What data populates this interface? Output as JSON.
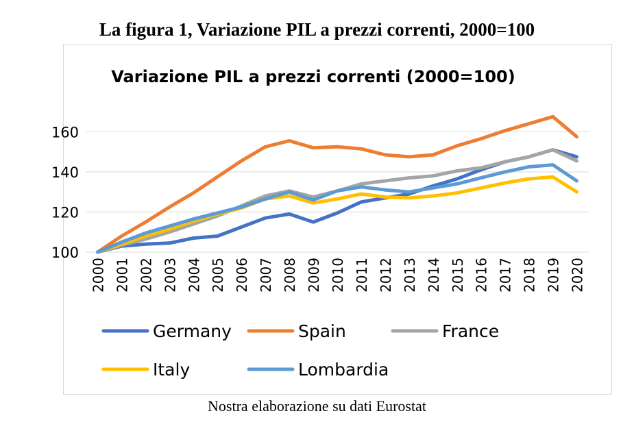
{
  "document": {
    "title": "La figura 1, Variazione PIL a prezzi correnti, 2000=100",
    "caption": "Nostra elaborazione su dati Eurostat"
  },
  "chart_data": {
    "type": "line",
    "title": "Variazione PIL a prezzi correnti (2000=100)",
    "xlabel": "",
    "ylabel": "",
    "ylim": [
      100,
      170
    ],
    "yticks": [
      100,
      120,
      140,
      160
    ],
    "grid": true,
    "legend_position": "bottom",
    "x": [
      "2000",
      "2001",
      "2002",
      "2003",
      "2004",
      "2005",
      "2006",
      "2007",
      "2008",
      "2009",
      "2010",
      "2011",
      "2012",
      "2013",
      "2014",
      "2015",
      "2016",
      "2017",
      "2018",
      "2019",
      "2020"
    ],
    "series": [
      {
        "name": "Germany",
        "color": "#4472c4",
        "values": [
          100,
          103,
          104,
          104.5,
          107,
          108,
          112.5,
          117,
          119,
          115,
          119.5,
          125,
          127,
          129,
          133,
          136.5,
          141,
          145,
          147.5,
          151,
          147.5
        ]
      },
      {
        "name": "Spain",
        "color": "#ed7d31",
        "values": [
          100,
          108,
          115,
          122.5,
          129.5,
          137.5,
          145.5,
          152.5,
          155.5,
          152,
          152.5,
          151.5,
          148.5,
          147.5,
          148.5,
          153,
          156.5,
          160.5,
          164,
          167.5,
          157.5
        ]
      },
      {
        "name": "France",
        "color": "#a5a5a5",
        "values": [
          100,
          103.5,
          106.5,
          110,
          114,
          118,
          123,
          128,
          130.5,
          127.5,
          130.5,
          134,
          135.5,
          137,
          138,
          140.5,
          142,
          145,
          147.5,
          151,
          145.5
        ]
      },
      {
        "name": "Italy",
        "color": "#ffc000",
        "values": [
          100,
          104,
          108,
          111.5,
          115.5,
          119,
          122,
          126.5,
          128,
          124.5,
          126.5,
          129,
          127.5,
          127,
          128,
          129.5,
          132,
          134.5,
          136.5,
          137.5,
          130
        ]
      },
      {
        "name": "Lombardia",
        "color": "#5b9bd5",
        "values": [
          100,
          105,
          109.5,
          113,
          116.5,
          119.5,
          122.5,
          126.5,
          130,
          126,
          130.5,
          132.5,
          131,
          130,
          132,
          134,
          137,
          140,
          142.5,
          143.5,
          135.5
        ]
      }
    ]
  }
}
